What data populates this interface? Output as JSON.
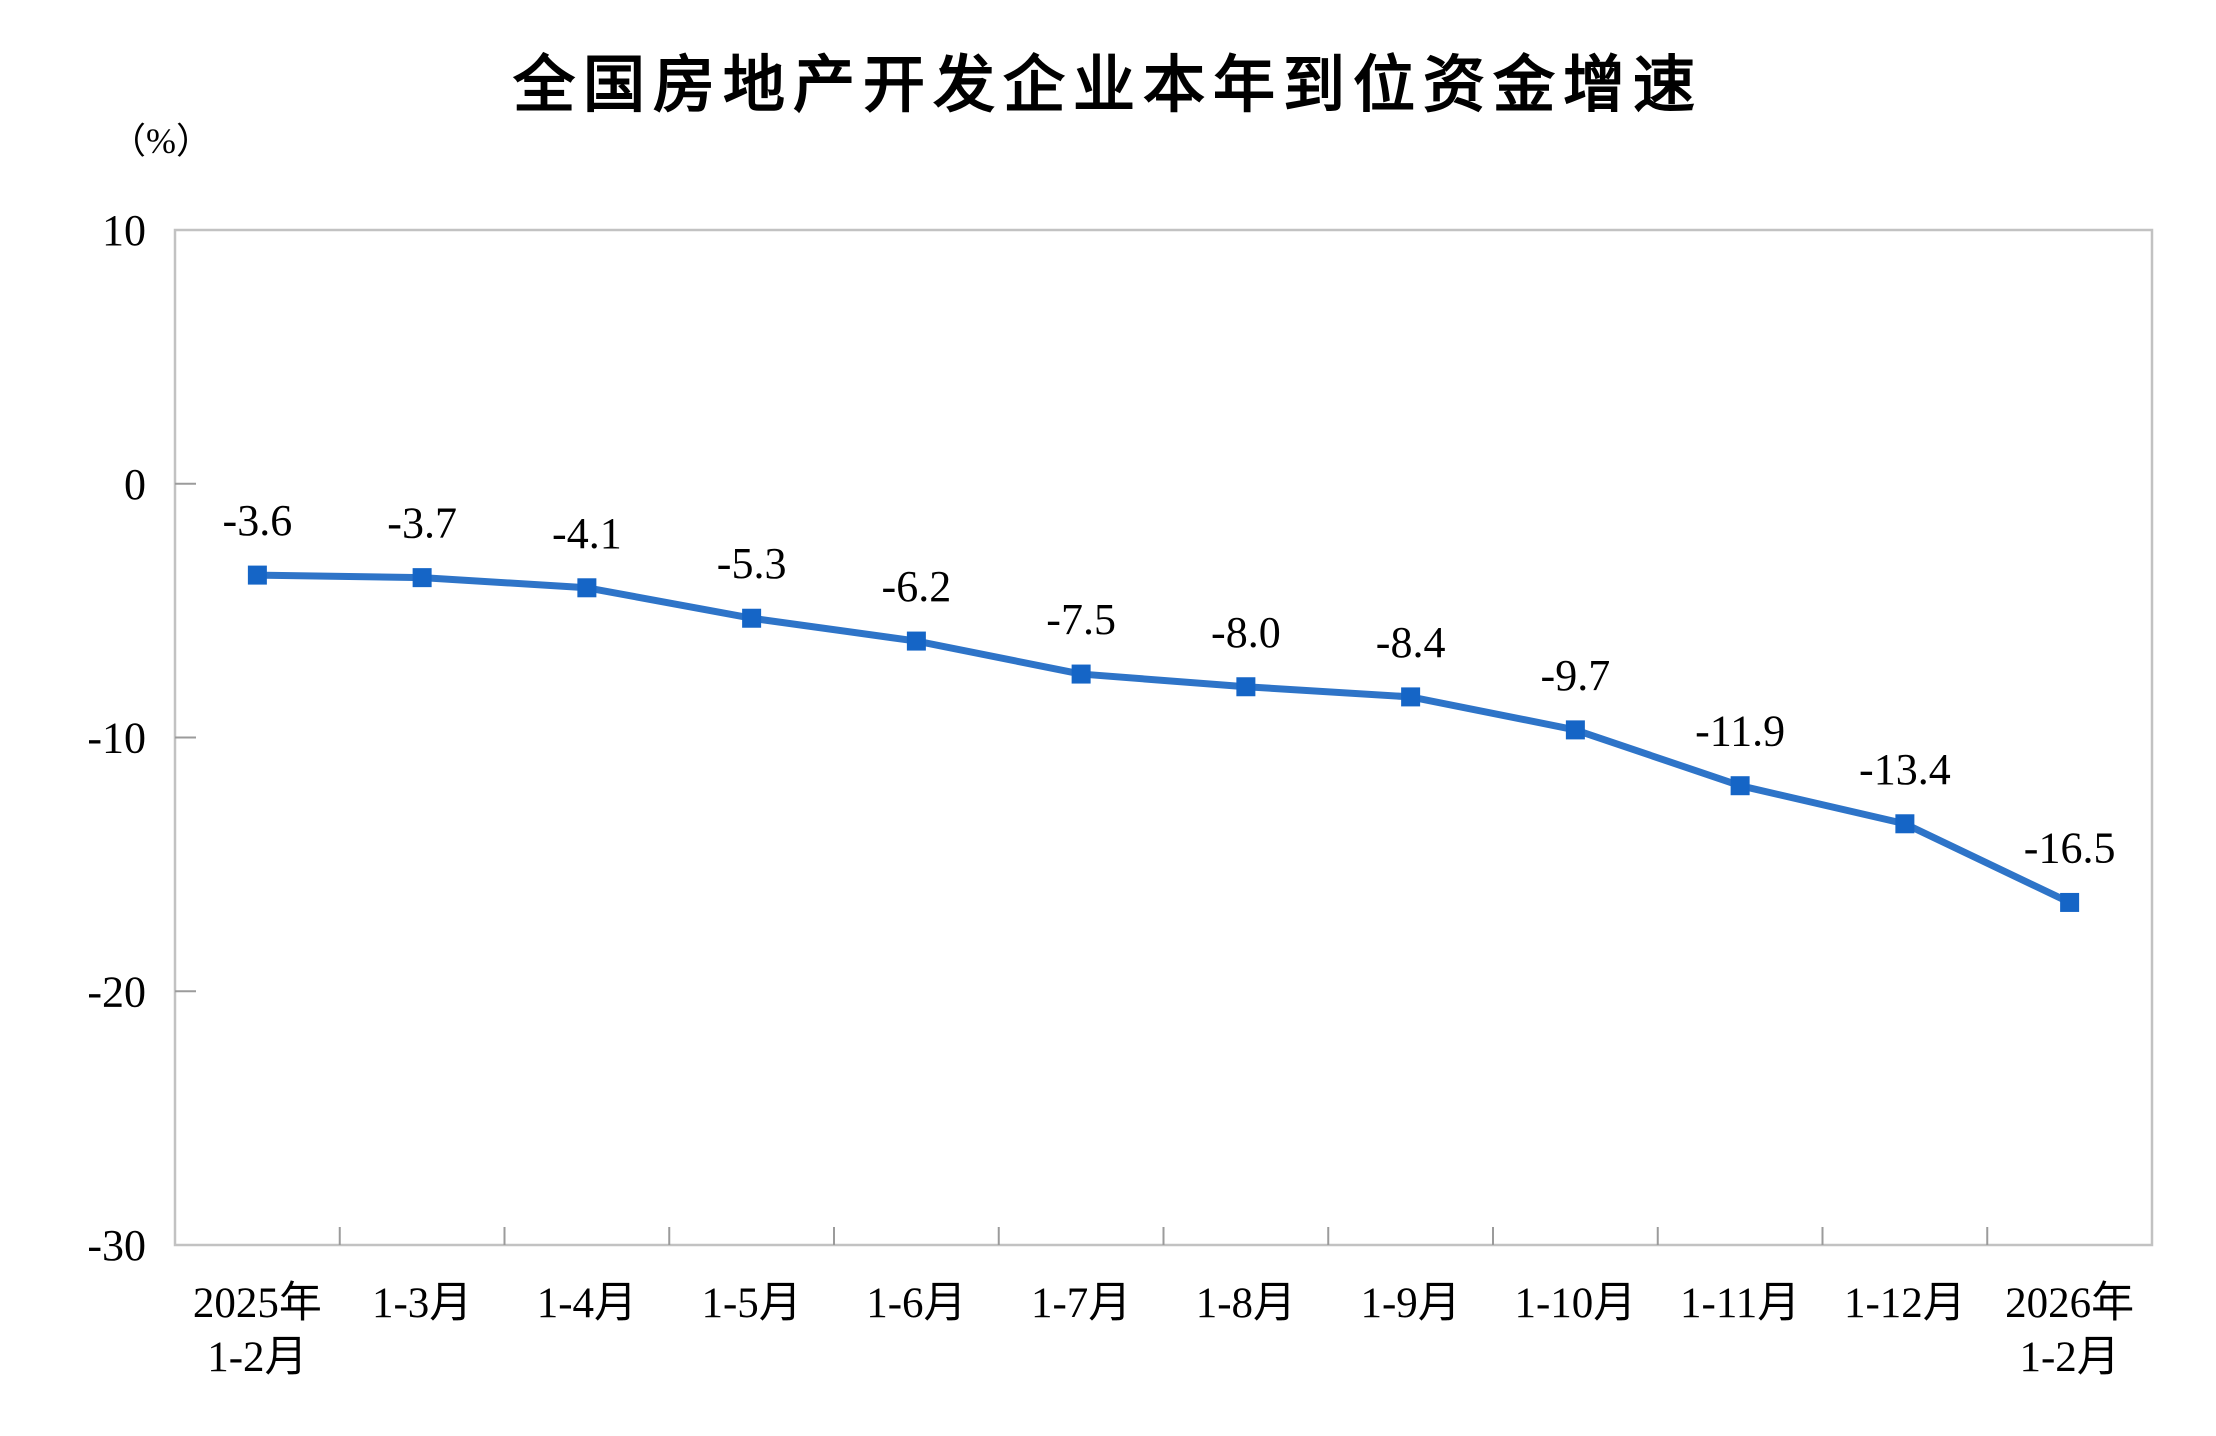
{
  "chart_data": {
    "type": "line",
    "title": "全国房地产开发企业本年到位资金增速",
    "unit_label": "（%）",
    "categories": [
      "2025年\n1-2月",
      "1-3月",
      "1-4月",
      "1-5月",
      "1-6月",
      "1-7月",
      "1-8月",
      "1-9月",
      "1-10月",
      "1-11月",
      "1-12月",
      "2026年\n1-2月"
    ],
    "values": [
      -3.6,
      -3.7,
      -4.1,
      -5.3,
      -6.2,
      -7.5,
      -8.0,
      -8.4,
      -9.7,
      -11.9,
      -13.4,
      -16.5
    ],
    "data_labels": [
      "-3.6",
      "-3.7",
      "-4.1",
      "-5.3",
      "-6.2",
      "-7.5",
      "-8.0",
      "-8.4",
      "-9.7",
      "-11.9",
      "-13.4",
      "-16.5"
    ],
    "y_ticks": [
      10,
      0,
      -10,
      -20,
      -30
    ],
    "ylim": [
      -30,
      10
    ],
    "xlabel": "",
    "ylabel": "（%）",
    "grid": false,
    "legend_position": "none",
    "colors": {
      "line": "#2E74C8",
      "marker": "#1565C6",
      "axis_border": "#C2C2C2",
      "tick": "#9B9B9B",
      "text": "#000000"
    }
  }
}
